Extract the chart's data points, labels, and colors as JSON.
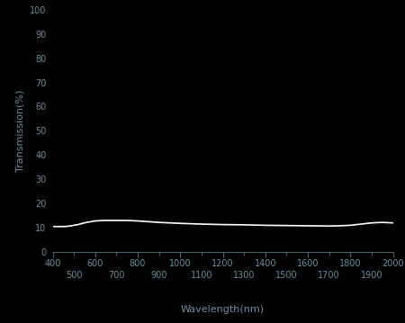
{
  "background_color": "#000000",
  "axes_facecolor": "#000000",
  "line_color": "#ffffff",
  "tick_color": "#6a8fa0",
  "label_color": "#6a8fa0",
  "xlabel": "Wavelength(nm)",
  "ylabel": "Transmission(%)",
  "xlim": [
    400,
    2000
  ],
  "ylim": [
    0,
    100
  ],
  "x_major_ticks": [
    400,
    600,
    800,
    1000,
    1200,
    1400,
    1600,
    1800,
    2000
  ],
  "x_minor_ticks": [
    500,
    700,
    900,
    1100,
    1300,
    1500,
    1700,
    1900
  ],
  "y_major_ticks": [
    0,
    10,
    20,
    30,
    40,
    50,
    60,
    70,
    80,
    90,
    100
  ],
  "line_width": 1.2,
  "font_size_ticks": 7,
  "font_size_labels": 8,
  "wavelengths": [
    400,
    420,
    440,
    460,
    480,
    500,
    520,
    540,
    560,
    580,
    600,
    620,
    640,
    660,
    680,
    700,
    750,
    800,
    850,
    900,
    950,
    1000,
    1100,
    1200,
    1300,
    1400,
    1500,
    1600,
    1700,
    1750,
    1800,
    1850,
    1900,
    1950,
    2000
  ],
  "transmission": [
    10.5,
    10.5,
    10.5,
    10.5,
    10.7,
    11.0,
    11.3,
    11.8,
    12.2,
    12.5,
    12.8,
    12.9,
    13.0,
    13.0,
    13.0,
    13.0,
    13.0,
    12.8,
    12.5,
    12.2,
    12.0,
    11.8,
    11.5,
    11.3,
    11.2,
    11.0,
    10.9,
    10.8,
    10.7,
    10.8,
    11.0,
    11.5,
    12.0,
    12.2,
    12.0
  ]
}
